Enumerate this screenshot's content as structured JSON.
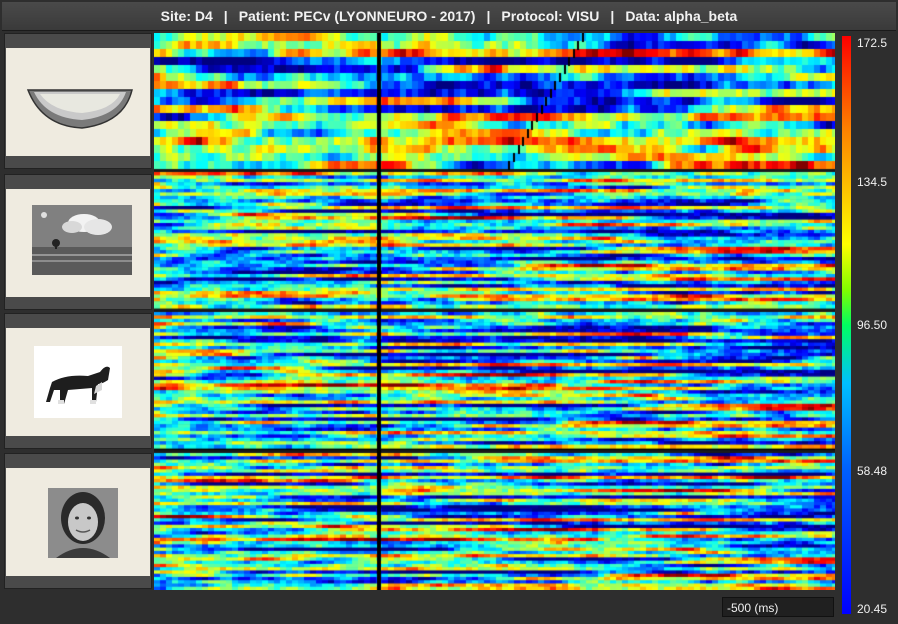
{
  "header": {
    "site": "Site: D4",
    "patient": "Patient: PECv (LYONNEURO - 2017)",
    "protocol": "Protocol: VISU",
    "data": "Data: alpha_beta",
    "separator": "|"
  },
  "panels": [
    {
      "category": "melon",
      "icon": "melon-icon"
    },
    {
      "category": "scene",
      "icon": "landscape-icon"
    },
    {
      "category": "animal",
      "icon": "dog-icon"
    },
    {
      "category": "face",
      "icon": "face-icon"
    }
  ],
  "colorbar": {
    "labels": [
      "172.5",
      "134.5",
      "96.50",
      "58.48",
      "20.45"
    ],
    "colors": [
      "#ff0000",
      "#ffff00",
      "#00ff60",
      "#0000ff"
    ]
  },
  "time_readout": "-500 (ms)"
}
